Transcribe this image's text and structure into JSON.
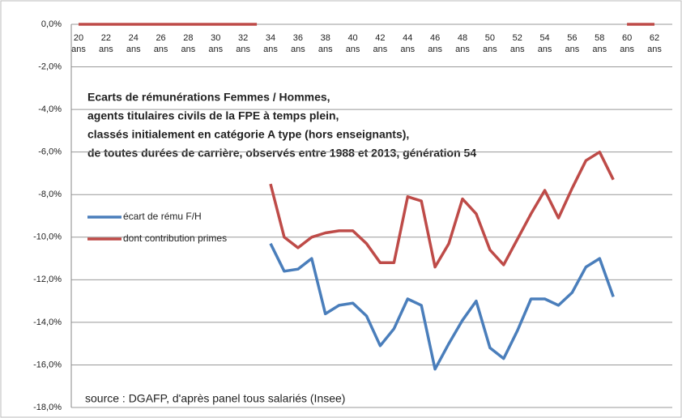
{
  "chart_data": {
    "type": "line",
    "annotation_lines": [
      "Ecarts de rémunérations Femmes / Hommes,",
      "agents titulaires civils de la FPE à temps plein,",
      "classés initialement en catégorie A type (hors enseignants),",
      "de toutes durées de carrière, observés entre 1988 et 2013,  génération 54"
    ],
    "source": "source : DGAFP, d'après panel tous salariés (Insee)",
    "categories": [
      "20 ans",
      null,
      "22 ans",
      null,
      "24 ans",
      null,
      "26 ans",
      null,
      "28 ans",
      null,
      "30 ans",
      null,
      "32 ans",
      null,
      "34 ans",
      null,
      "36 ans",
      null,
      "38 ans",
      null,
      "40 ans",
      null,
      "42 ans",
      null,
      "44 ans",
      null,
      "46 ans",
      null,
      "48 ans",
      null,
      "50 ans",
      null,
      "52 ans",
      null,
      "54 ans",
      null,
      "56 ans",
      null,
      "58 ans",
      null,
      "60 ans",
      null,
      "62 ans"
    ],
    "series": [
      {
        "name": "écart de rému F/H",
        "color": "#4a7ebb",
        "values": [
          null,
          null,
          null,
          null,
          null,
          null,
          null,
          null,
          null,
          null,
          null,
          null,
          null,
          null,
          -10.3,
          -11.6,
          -11.5,
          -11.0,
          -13.6,
          -13.2,
          -13.1,
          -13.7,
          -15.1,
          -14.3,
          -12.9,
          -13.2,
          -16.2,
          -15.0,
          -13.9,
          -13.0,
          -15.2,
          -15.7,
          -14.4,
          -12.9,
          -12.9,
          -13.2,
          -12.6,
          -11.4,
          -11.0,
          -12.8,
          null,
          null,
          null
        ]
      },
      {
        "name": "dont contribution primes",
        "color": "#be4b48",
        "values": [
          null,
          null,
          null,
          null,
          null,
          null,
          null,
          null,
          null,
          null,
          null,
          null,
          null,
          null,
          -7.5,
          -10.0,
          -10.5,
          -10.0,
          -9.8,
          -9.7,
          -9.7,
          -10.3,
          -11.2,
          -11.2,
          -8.1,
          -8.3,
          -11.4,
          -10.3,
          -8.2,
          -8.9,
          -10.6,
          -11.3,
          -10.1,
          -8.9,
          -7.8,
          -9.1,
          -7.7,
          -6.4,
          -6.0,
          -7.3,
          null,
          null,
          null
        ]
      },
      {
        "color": "#be4b48",
        "values": [
          0,
          0,
          0,
          0,
          0,
          0,
          0,
          0,
          0,
          0,
          0,
          0,
          0,
          0,
          null,
          null,
          null,
          null,
          null,
          null,
          null,
          null,
          null,
          null,
          null,
          null,
          null,
          null,
          null,
          null,
          null,
          null,
          null,
          null,
          null,
          null,
          null,
          null,
          null,
          null,
          0,
          0,
          0
        ]
      }
    ],
    "ylim": [
      -18,
      0
    ],
    "yticks": [
      {
        "value": 0,
        "label": "0,0%"
      },
      {
        "value": -2,
        "label": "-2,0%"
      },
      {
        "value": -4,
        "label": "-4,0%"
      },
      {
        "value": -6,
        "label": "-6,0%"
      },
      {
        "value": -8,
        "label": "-8,0%"
      },
      {
        "value": -10,
        "label": "-10,0%"
      },
      {
        "value": -12,
        "label": "-12,0%"
      },
      {
        "value": -14,
        "label": "-14,0%"
      },
      {
        "value": -16,
        "label": "-16,0%"
      },
      {
        "value": -18,
        "label": "-18,0%"
      }
    ],
    "grid": true
  }
}
